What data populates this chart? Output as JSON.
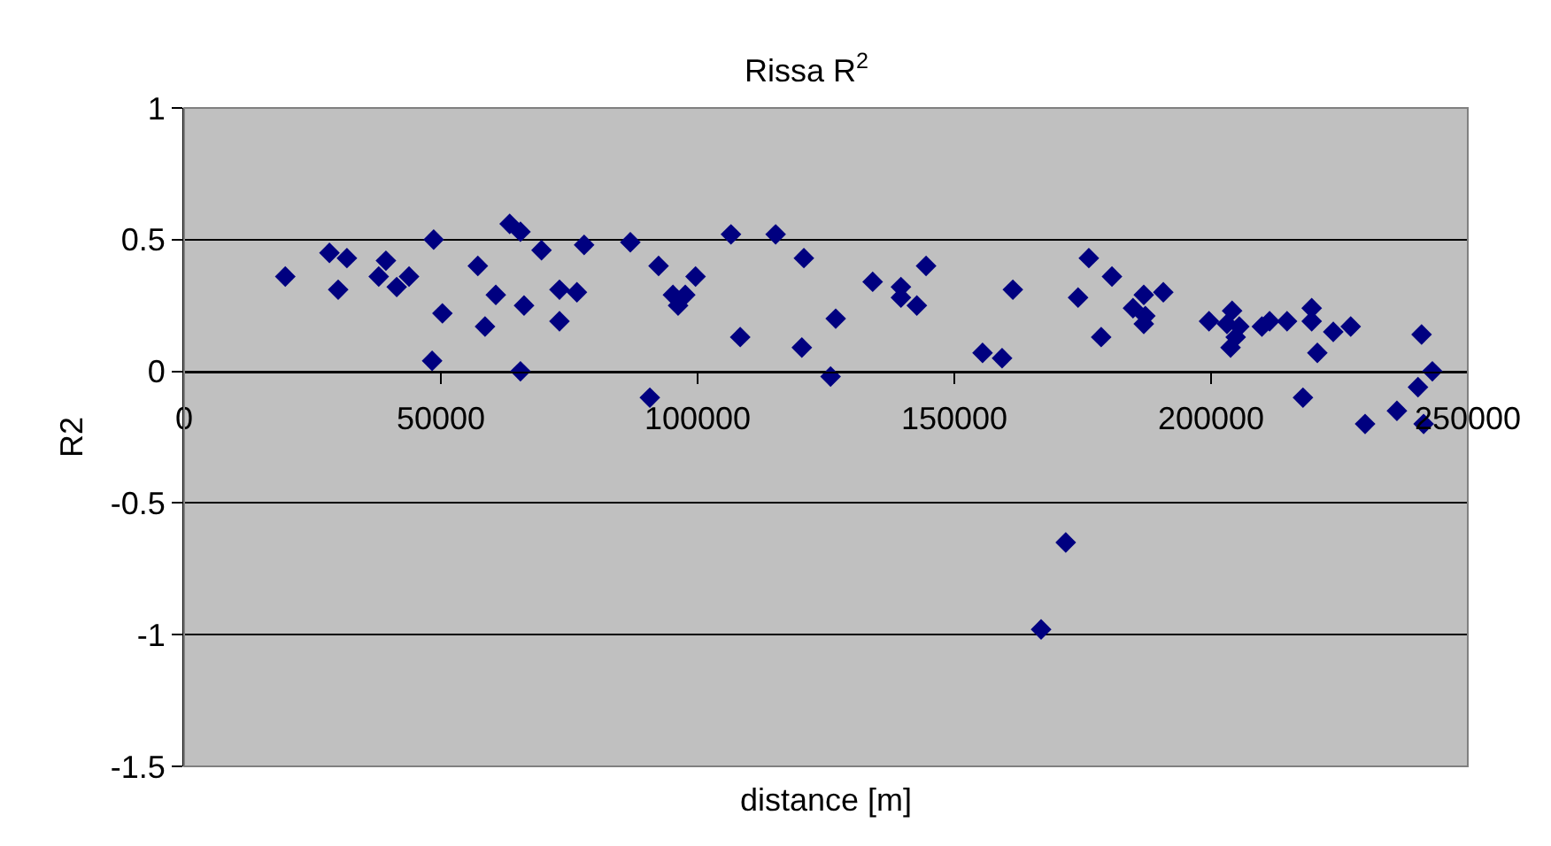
{
  "chart_data": {
    "type": "scatter",
    "title": "Rissa R$^{2}$",
    "xlabel": "distance [m]",
    "ylabel": "R2",
    "x": [
      19700,
      28300,
      30000,
      31700,
      37900,
      39300,
      41400,
      43800,
      48300,
      48600,
      50300,
      57200,
      58600,
      60700,
      63400,
      65500,
      66200,
      65500,
      69600,
      73100,
      73100,
      76500,
      77900,
      86900,
      90700,
      92400,
      95200,
      96200,
      97600,
      99600,
      106500,
      108300,
      115200,
      120700,
      120300,
      125900,
      126900,
      134100,
      139600,
      139600,
      142700,
      144500,
      155500,
      159300,
      161400,
      166900,
      171700,
      174100,
      176200,
      178600,
      180700,
      184800,
      186900,
      187200,
      186900,
      190700,
      199600,
      204100,
      203100,
      205500,
      203800,
      204800,
      209900,
      211400,
      214800,
      219600,
      219600,
      220700,
      223800,
      227200,
      217900,
      230000,
      236200,
      240300,
      241000,
      243100,
      241400
    ],
    "series": [
      {
        "color": "#000080",
        "values": [
          0.36,
          0.45,
          0.31,
          0.43,
          0.36,
          0.42,
          0.32,
          0.36,
          0.04,
          0.5,
          0.22,
          0.4,
          0.17,
          0.29,
          0.56,
          0.53,
          0.25,
          0.0,
          0.46,
          0.31,
          0.19,
          0.3,
          0.48,
          0.49,
          -0.1,
          0.4,
          0.29,
          0.25,
          0.29,
          0.36,
          0.52,
          0.13,
          0.52,
          0.43,
          0.09,
          -0.02,
          0.2,
          0.34,
          0.32,
          0.28,
          0.25,
          0.4,
          0.07,
          0.05,
          0.31,
          -0.98,
          -0.65,
          0.28,
          0.43,
          0.13,
          0.36,
          0.24,
          0.29,
          0.21,
          0.18,
          0.3,
          0.19,
          0.23,
          0.18,
          0.17,
          0.09,
          0.13,
          0.17,
          0.19,
          0.19,
          0.24,
          0.19,
          0.07,
          0.15,
          0.17,
          -0.1,
          -0.2,
          -0.15,
          -0.06,
          0.14,
          0.0,
          -0.2
        ]
      }
    ],
    "xlim": [
      0,
      250000
    ],
    "xticks": [
      0,
      50000,
      100000,
      150000,
      200000,
      250000
    ],
    "ylim": [
      -1.5,
      1
    ],
    "yticks": [
      -1.5,
      -1,
      -0.5,
      0,
      0.5,
      1
    ],
    "grid": "y",
    "marker": "diamond"
  }
}
